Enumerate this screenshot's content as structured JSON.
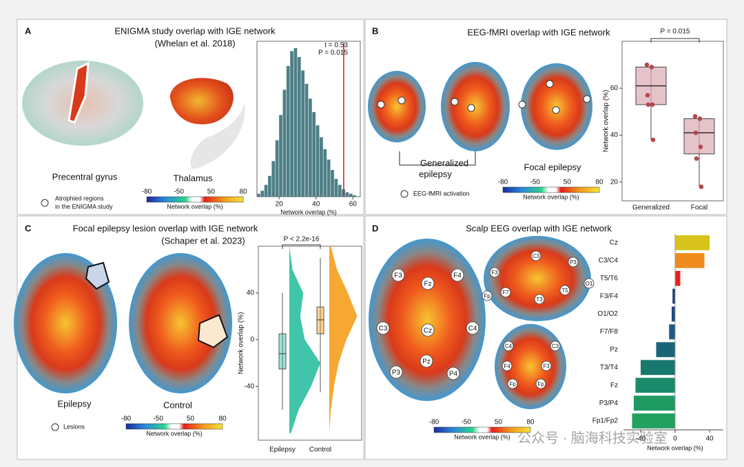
{
  "panels": [
    {
      "letter": "A",
      "title": "ENIGMA study overlap with IGE network",
      "subtitle": "(Whelan et al. 2018)",
      "labels": [
        "Precentral gyrus",
        "Thalamus"
      ],
      "legend": [
        "Atrophied regions",
        "in the ENIGMA study"
      ],
      "colorbar": {
        "ticks": [
          -80,
          -50,
          50,
          80
        ],
        "label": "Network overlap (%)"
      }
    },
    {
      "letter": "B",
      "title": "EEG-fMRI overlap with IGE network",
      "labels": [
        "Generalized",
        "epilepsy",
        "Focal epilepsy"
      ],
      "legend": [
        "EEG-fMRI activation"
      ],
      "colorbar": {
        "ticks": [
          -80,
          -50,
          50,
          80
        ],
        "label": "Network overlap (%)"
      }
    },
    {
      "letter": "C",
      "title": "Focal epilepsy lesion overlap with IGE network",
      "subtitle": "(Schaper et al. 2023)",
      "labels": [
        "Epilepsy",
        "Control"
      ],
      "legend": [
        "Lesions"
      ],
      "colorbar": {
        "ticks": [
          -80,
          -50,
          50,
          80
        ],
        "label": "Network overlap (%)"
      }
    },
    {
      "letter": "D",
      "title": "Scalp EEG overlap with IGE network",
      "electrodes": [
        "F3",
        "Fz",
        "F4",
        "C3",
        "Cz",
        "C4",
        "P3",
        "Pz",
        "P4",
        "C3",
        "P3",
        "F3",
        "F7",
        "Fp",
        "T3",
        "T5",
        "O1",
        "C4",
        "C3",
        "F4",
        "F3",
        "Fp",
        "Fp"
      ],
      "colorbar": {
        "ticks": [
          -80,
          -50,
          50,
          80
        ],
        "label": "Network overlap (%)"
      }
    }
  ],
  "watermark": "公众号 · 脑海科技实验室",
  "chart_data": [
    {
      "type": "histogram",
      "bins": [
        8,
        10,
        12,
        14,
        16,
        18,
        20,
        22,
        24,
        26,
        28,
        30,
        32,
        34,
        36,
        38,
        40,
        42,
        44,
        46,
        48,
        50,
        52,
        54,
        56,
        58,
        60,
        62
      ],
      "values": [
        2,
        4,
        8,
        14,
        24,
        38,
        55,
        72,
        88,
        98,
        100,
        94,
        85,
        76,
        66,
        57,
        48,
        40,
        32,
        25,
        18,
        12,
        8,
        5,
        3,
        2,
        1
      ],
      "color": "#4e7f86",
      "xlim": [
        8,
        64
      ],
      "xticks": [
        20,
        40,
        60
      ],
      "xlabel": "Network overlap (%)",
      "marker_x": 55,
      "marker_color": "#e0241b",
      "annotations": [
        "t = 0.53",
        "P = 0.015"
      ]
    },
    {
      "type": "box",
      "ylim": [
        12,
        80
      ],
      "yticks": [
        20,
        40,
        60
      ],
      "ylabel": "Network overlap (%)",
      "annotation": "P = 0.015",
      "color": "#dba9b1",
      "point_color": "#b5474f",
      "boxes": [
        {
          "name": "Generalized",
          "whislo": 38,
          "q1": 53,
          "median": 61,
          "q3": 69,
          "whishi": 70,
          "points": [
            70,
            69,
            57,
            53,
            53,
            38
          ]
        },
        {
          "name": "Focal",
          "whislo": 18,
          "q1": 32,
          "median": 41,
          "q3": 47,
          "whishi": 48,
          "points": [
            48,
            47,
            41,
            35,
            30,
            18
          ]
        }
      ]
    },
    {
      "type": "raincloud",
      "ylim": [
        -86,
        80
      ],
      "yticks": [
        -40,
        0,
        40
      ],
      "ylabel": "Network overlap (%)",
      "annotation": "P < 2.2e-16",
      "density_y": [
        -80,
        -60,
        -40,
        -20,
        0,
        20,
        40,
        60,
        80
      ],
      "series": [
        {
          "name": "Epilepsy",
          "color": "#2bbf9f",
          "box": {
            "whislo": -60,
            "q1": -25,
            "median": -12,
            "q3": 5,
            "whishi": 40
          },
          "density": [
            0.05,
            0.3,
            0.7,
            1.0,
            0.5,
            0.35,
            0.45,
            0.1,
            0
          ]
        },
        {
          "name": "Control",
          "color": "#f59e1c",
          "box": {
            "whislo": -45,
            "q1": 5,
            "median": 17,
            "q3": 28,
            "whishi": 70
          },
          "density": [
            0,
            0.05,
            0.15,
            0.3,
            0.55,
            0.9,
            0.6,
            0.25,
            0.05
          ]
        }
      ]
    },
    {
      "type": "hbar",
      "categories": [
        "Cz",
        "C3/C4",
        "T5/T6",
        "F3/F4",
        "O1/O2",
        "F7/F8",
        "Pz",
        "T3/T4",
        "Fz",
        "P3/P4",
        "Fp1/Fp2"
      ],
      "values": [
        40,
        34,
        6,
        -3,
        -4,
        -7,
        -22,
        -40,
        -46,
        -48,
        -50
      ],
      "colors": [
        "#d6c41b",
        "#f08c1e",
        "#e8201e",
        "#1f3a7a",
        "#1f4a80",
        "#1e5a85",
        "#1a6478",
        "#18786e",
        "#1a8a6a",
        "#1e9a62",
        "#22a05e"
      ],
      "xlim": [
        -60,
        56
      ],
      "xticks": [
        -40,
        0,
        40
      ],
      "xlabel": "Network overlap (%)"
    }
  ]
}
